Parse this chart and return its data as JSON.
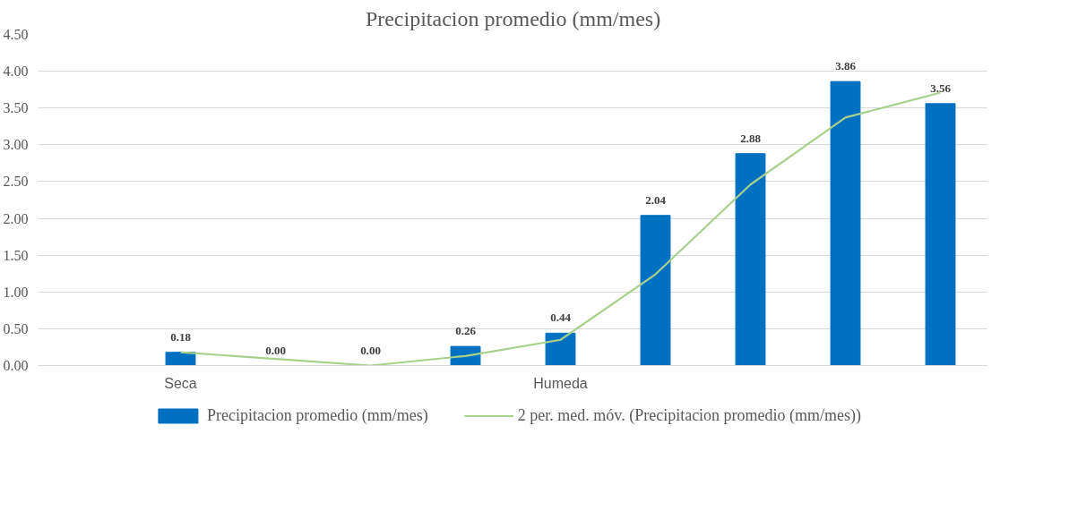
{
  "chart_data": {
    "type": "bar",
    "title": "Precipitacion promedio (mm/mes)",
    "categories": [
      null,
      "Seca",
      null,
      null,
      null,
      "Humeda",
      null,
      null,
      null,
      null
    ],
    "series": [
      {
        "name": "Precipitacion promedio (mm/mes)",
        "color": "#0070c0",
        "values": [
          null,
          0.18,
          0.0,
          0.0,
          0.26,
          0.44,
          2.04,
          2.88,
          3.86,
          3.56
        ],
        "value_labels": [
          null,
          "0.18",
          "0.00",
          "0.00",
          "0.26",
          "0.44",
          "2.04",
          "2.88",
          "3.86",
          "3.56"
        ]
      },
      {
        "name": "2 per. med. móv. (Precipitacion promedio (mm/mes))",
        "type": "line",
        "color": "#a9d18e",
        "values": [
          null,
          0.18,
          0.09,
          0.0,
          0.13,
          0.35,
          1.24,
          2.46,
          3.37,
          3.71
        ]
      }
    ],
    "ylim": [
      0,
      4.5
    ],
    "yticks": [
      {
        "value": 0,
        "label": "0.00"
      },
      {
        "value": 0.5,
        "label": "0.50"
      },
      {
        "value": 1,
        "label": "1.00"
      },
      {
        "value": 1.5,
        "label": "1.50"
      },
      {
        "value": 2,
        "label": "2.00"
      },
      {
        "value": 2.5,
        "label": "2.50"
      },
      {
        "value": 3,
        "label": "3.00"
      },
      {
        "value": 3.5,
        "label": "3.50"
      },
      {
        "value": 4,
        "label": "4.00"
      },
      {
        "value": 4.5,
        "label": "4.50"
      }
    ],
    "grid": "y",
    "legend": "bottom",
    "line_style": "solid",
    "marker": "none"
  }
}
